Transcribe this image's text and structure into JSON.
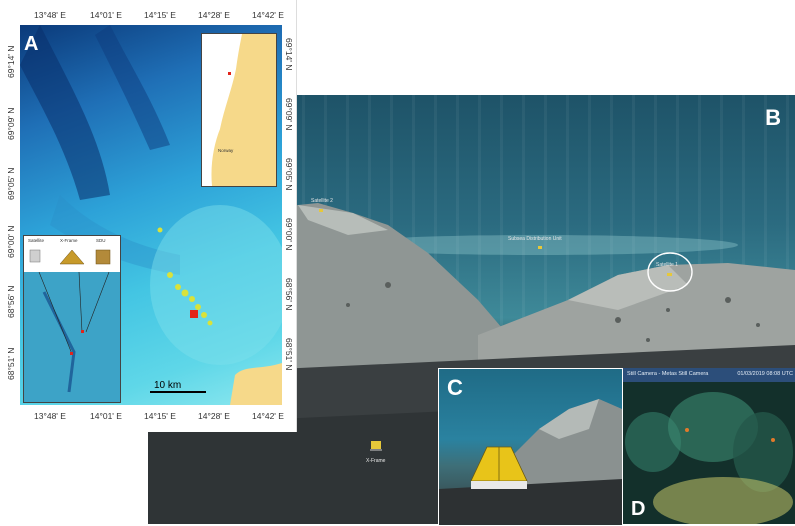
{
  "panel_a": {
    "letter": "A",
    "top_ticks": [
      "13°48' E",
      "14°01' E",
      "14°15' E",
      "14°28' E",
      "14°42' E"
    ],
    "bottom_ticks": [
      "13°48' E",
      "14°01' E",
      "14°15' E",
      "14°28' E",
      "14°42' E"
    ],
    "left_ticks": [
      "69°14' N",
      "69°09' N",
      "69°05' N",
      "69°00' N",
      "68°56' N",
      "68°51' N"
    ],
    "right_ticks": [
      "69°14' N",
      "69°09' N",
      "69°05' N",
      "69°00' N",
      "68°56' N",
      "68°51' N"
    ],
    "scale_label": "10 km",
    "inset_labels": [
      "Satellite",
      "X-Frame",
      "SDU"
    ],
    "norway_label": "Norway"
  },
  "panel_b": {
    "letter": "B",
    "labels": {
      "satellite_2": "Satellite 2",
      "sdu": "Subsea Distribution Unit",
      "satellite_1": "Satellite 1",
      "x_frame": "X-Frame"
    }
  },
  "panel_c": {
    "letter": "C"
  },
  "panel_d": {
    "letter": "D",
    "title_left": "Still Camera - Metas Still Camera",
    "title_right": "01/03/2019 08:08 UTC"
  },
  "colors": {
    "deep_blue": "#0b3a7a",
    "shallow_cyan": "#5fd7e8",
    "land": "#f6d98a",
    "marker_red": "#e2231a",
    "feature_yellow": "#e6e23a"
  }
}
